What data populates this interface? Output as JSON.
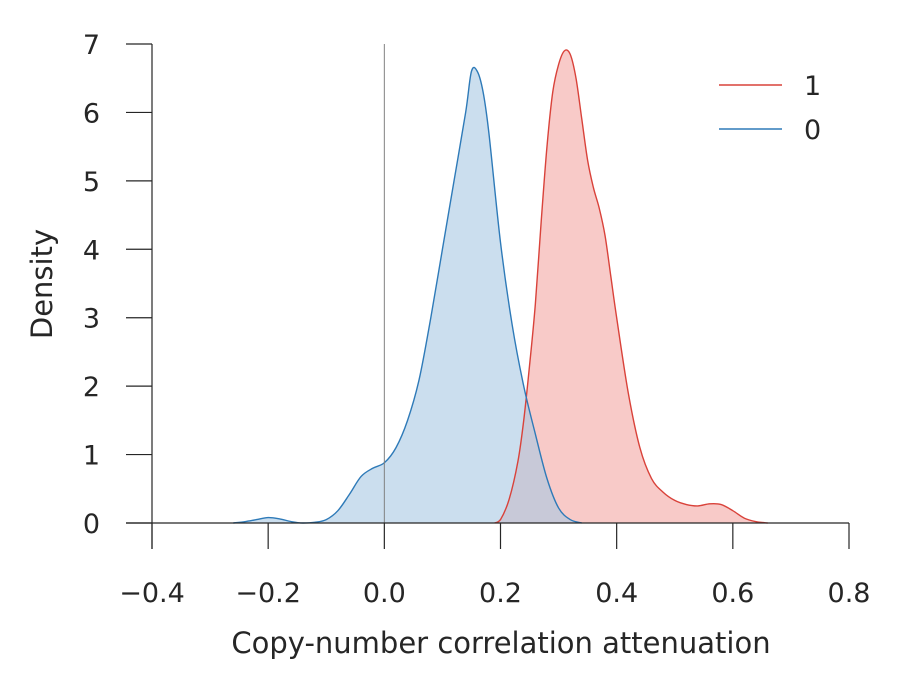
{
  "chart_data": {
    "type": "area",
    "xlabel": "Copy-number correlation attenuation",
    "ylabel": "Density",
    "xlim": [
      -0.4,
      0.8
    ],
    "ylim": [
      0,
      7
    ],
    "xticks": [
      -0.4,
      -0.2,
      0.0,
      0.2,
      0.4,
      0.6,
      0.8
    ],
    "xtick_labels": [
      "−0.4",
      "−0.2",
      "0.0",
      "0.2",
      "0.4",
      "0.6",
      "0.8"
    ],
    "yticks": [
      0,
      1,
      2,
      3,
      4,
      5,
      6,
      7
    ],
    "ytick_labels": [
      "0",
      "1",
      "2",
      "3",
      "4",
      "5",
      "6",
      "7"
    ],
    "grid": false,
    "vline_x": 0.0,
    "legend_position": "top-right",
    "series": [
      {
        "name": "1",
        "color": "#d9423a",
        "fill": "#f4a6a3",
        "x": [
          0.19,
          0.2,
          0.215,
          0.23,
          0.24,
          0.25,
          0.26,
          0.27,
          0.28,
          0.29,
          0.3,
          0.31,
          0.32,
          0.33,
          0.34,
          0.35,
          0.36,
          0.37,
          0.38,
          0.39,
          0.4,
          0.42,
          0.44,
          0.46,
          0.48,
          0.5,
          0.52,
          0.54,
          0.56,
          0.58,
          0.6,
          0.62,
          0.64,
          0.66
        ],
        "y": [
          0.0,
          0.05,
          0.35,
          0.9,
          1.5,
          2.3,
          3.2,
          4.4,
          5.5,
          6.3,
          6.7,
          6.9,
          6.85,
          6.5,
          5.9,
          5.3,
          4.9,
          4.6,
          4.2,
          3.6,
          3.0,
          1.9,
          1.1,
          0.65,
          0.45,
          0.33,
          0.27,
          0.25,
          0.28,
          0.27,
          0.18,
          0.07,
          0.02,
          0.0
        ]
      },
      {
        "name": "0",
        "color": "#2e7ab8",
        "fill": "#a9c8e2",
        "x": [
          -0.26,
          -0.24,
          -0.22,
          -0.2,
          -0.18,
          -0.16,
          -0.14,
          -0.12,
          -0.1,
          -0.08,
          -0.06,
          -0.04,
          -0.02,
          0.0,
          0.02,
          0.04,
          0.06,
          0.08,
          0.1,
          0.12,
          0.14,
          0.15,
          0.16,
          0.17,
          0.18,
          0.2,
          0.22,
          0.24,
          0.26,
          0.28,
          0.3,
          0.32,
          0.34
        ],
        "y": [
          0.0,
          0.02,
          0.05,
          0.08,
          0.06,
          0.02,
          0.0,
          0.01,
          0.05,
          0.18,
          0.42,
          0.68,
          0.8,
          0.88,
          1.1,
          1.5,
          2.1,
          3.0,
          4.0,
          5.0,
          6.0,
          6.6,
          6.6,
          6.3,
          5.7,
          4.1,
          2.9,
          2.0,
          1.3,
          0.65,
          0.22,
          0.05,
          0.0
        ]
      }
    ]
  }
}
